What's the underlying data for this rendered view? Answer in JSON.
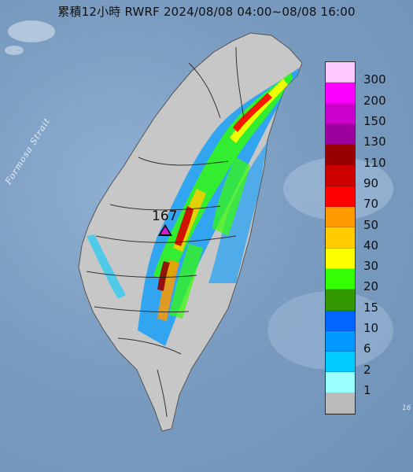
{
  "title": "累積12小時 RWRF 2024/08/08 04:00~08/08 16:00",
  "strait_label": "Formosa Strait",
  "corner_text": "16",
  "peak": {
    "value": "167",
    "marker_color": "#d21bd2"
  },
  "legend": [
    {
      "label": "300",
      "color": "#fdc9fc"
    },
    {
      "label": "200",
      "color": "#fe00fe"
    },
    {
      "label": "150",
      "color": "#cc00cc"
    },
    {
      "label": "130",
      "color": "#9e009e"
    },
    {
      "label": "110",
      "color": "#990000"
    },
    {
      "label": "90",
      "color": "#cc0000"
    },
    {
      "label": "70",
      "color": "#ff0000"
    },
    {
      "label": "50",
      "color": "#ff9900"
    },
    {
      "label": "40",
      "color": "#ffcc00"
    },
    {
      "label": "30",
      "color": "#ffff00"
    },
    {
      "label": "20",
      "color": "#33ff00"
    },
    {
      "label": "15",
      "color": "#339900"
    },
    {
      "label": "10",
      "color": "#0066ff"
    },
    {
      "label": "6",
      "color": "#0099ff"
    },
    {
      "label": "2",
      "color": "#00ccff"
    },
    {
      "label": "1",
      "color": "#99ffff"
    },
    {
      "label": "",
      "color": "#bbbbbb"
    }
  ]
}
